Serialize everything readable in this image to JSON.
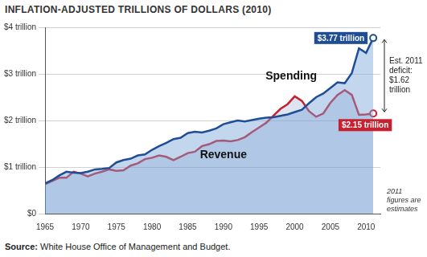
{
  "chart_data": {
    "type": "area",
    "title": "INFLATION-ADJUSTED TRILLIONS OF DOLLARS (2010)",
    "x": [
      1965,
      1966,
      1967,
      1968,
      1969,
      1970,
      1971,
      1972,
      1973,
      1974,
      1975,
      1976,
      1977,
      1978,
      1979,
      1980,
      1981,
      1982,
      1983,
      1984,
      1985,
      1986,
      1987,
      1988,
      1989,
      1990,
      1991,
      1992,
      1993,
      1994,
      1995,
      1996,
      1997,
      1998,
      1999,
      2000,
      2001,
      2002,
      2003,
      2004,
      2005,
      2006,
      2007,
      2008,
      2009,
      2010,
      2011
    ],
    "series": [
      {
        "name": "Spending",
        "color": "#1f4e96",
        "values": [
          0.65,
          0.72,
          0.82,
          0.9,
          0.88,
          0.87,
          0.9,
          0.95,
          0.96,
          0.98,
          1.1,
          1.15,
          1.18,
          1.25,
          1.27,
          1.37,
          1.45,
          1.52,
          1.6,
          1.63,
          1.73,
          1.76,
          1.74,
          1.78,
          1.83,
          1.92,
          1.96,
          2.0,
          1.98,
          2.01,
          2.04,
          2.06,
          2.07,
          2.1,
          2.13,
          2.18,
          2.23,
          2.37,
          2.5,
          2.58,
          2.7,
          2.82,
          2.8,
          3.02,
          3.55,
          3.45,
          3.77
        ]
      },
      {
        "name": "Revenue",
        "color": "#c8202f",
        "values": [
          0.63,
          0.7,
          0.77,
          0.77,
          0.9,
          0.86,
          0.8,
          0.86,
          0.9,
          0.95,
          0.92,
          0.93,
          1.03,
          1.08,
          1.17,
          1.2,
          1.25,
          1.22,
          1.15,
          1.22,
          1.3,
          1.33,
          1.45,
          1.49,
          1.56,
          1.57,
          1.55,
          1.58,
          1.64,
          1.75,
          1.85,
          1.95,
          2.1,
          2.25,
          2.35,
          2.52,
          2.42,
          2.2,
          2.08,
          2.15,
          2.38,
          2.55,
          2.65,
          2.55,
          2.12,
          2.13,
          2.15
        ]
      }
    ],
    "xlim": [
      1965,
      2012
    ],
    "xticks": [
      1965,
      1970,
      1975,
      1980,
      1985,
      1990,
      1995,
      2000,
      2005,
      2010
    ],
    "ylim": [
      0,
      4
    ],
    "yticks": [
      {
        "value": 0,
        "label": "$0"
      },
      {
        "value": 1,
        "label": "$1 trillion"
      },
      {
        "value": 2,
        "label": "$2 trillion"
      },
      {
        "value": 3,
        "label": "$3 trillion"
      },
      {
        "value": 4,
        "label": "$4 trillion"
      }
    ],
    "grid": true,
    "annotations": [
      {
        "text": "$3.77 trillion",
        "x": 2011,
        "y": 3.77
      },
      {
        "text": "$2.15 trillion",
        "x": 2011,
        "y": 2.15
      },
      {
        "text": "Est. 2011 deficit: $1.62 trillion",
        "x": 2011,
        "y_from": 3.77,
        "y_to": 2.15
      },
      {
        "text": "Spending",
        "x": 1999.5,
        "y": 2.95
      },
      {
        "text": "Revenue",
        "x": 1990,
        "y": 1.25
      }
    ],
    "note": "2011 figures are estimates",
    "source": "Source: White House Office of Management and Budget."
  }
}
